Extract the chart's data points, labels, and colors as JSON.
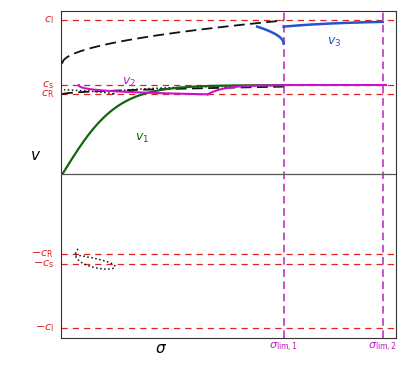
{
  "c_l": 1.0,
  "c_s": 0.58,
  "c_R": 0.52,
  "sigma_lim1": 0.67,
  "sigma_lim2": 0.97,
  "bg_color": "#ffffff",
  "red_dashed_color": "#dd2222",
  "magenta_vline_color": "#bb22bb",
  "v1_color": "#116611",
  "v2_color": "#cc11cc",
  "v3_color": "#2255cc",
  "dotted_color": "#111111",
  "dashed_color": "#111111",
  "sigma_label_color": "#000000",
  "sigma_lim_label_color": "#bb22bb"
}
